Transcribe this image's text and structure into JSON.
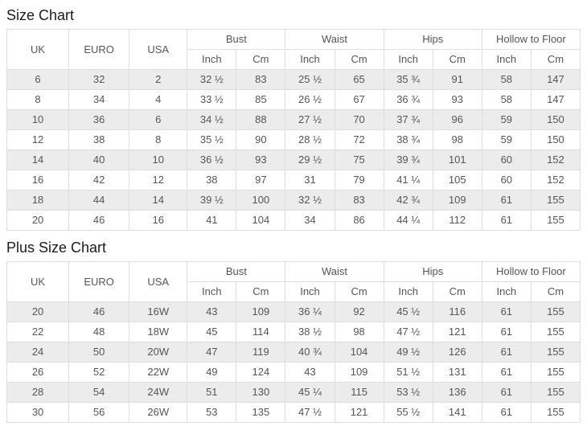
{
  "colors": {
    "background": "#ffffff",
    "row_shaded": "#ececec",
    "row_plain": "#ffffff",
    "border": "#dddddd",
    "cell_text": "#555555",
    "title_text": "#1b1b1b"
  },
  "tables": [
    {
      "title": "Size Chart",
      "columns": [
        "UK",
        "EURO",
        "USA"
      ],
      "measurement_groups": [
        "Bust",
        "Waist",
        "Hips",
        "Hollow to Floor"
      ],
      "unit_headers": [
        "Inch",
        "Cm"
      ],
      "rows": [
        [
          "6",
          "32",
          "2",
          "32 ½",
          "83",
          "25 ½",
          "65",
          "35 ¾",
          "91",
          "58",
          "147"
        ],
        [
          "8",
          "34",
          "4",
          "33 ½",
          "85",
          "26 ½",
          "67",
          "36 ¾",
          "93",
          "58",
          "147"
        ],
        [
          "10",
          "36",
          "6",
          "34 ½",
          "88",
          "27 ½",
          "70",
          "37 ¾",
          "96",
          "59",
          "150"
        ],
        [
          "12",
          "38",
          "8",
          "35 ½",
          "90",
          "28 ½",
          "72",
          "38 ¾",
          "98",
          "59",
          "150"
        ],
        [
          "14",
          "40",
          "10",
          "36 ½",
          "93",
          "29 ½",
          "75",
          "39 ¾",
          "101",
          "60",
          "152"
        ],
        [
          "16",
          "42",
          "12",
          "38",
          "97",
          "31",
          "79",
          "41 ¼",
          "105",
          "60",
          "152"
        ],
        [
          "18",
          "44",
          "14",
          "39 ½",
          "100",
          "32 ½",
          "83",
          "42 ¾",
          "109",
          "61",
          "155"
        ],
        [
          "20",
          "46",
          "16",
          "41",
          "104",
          "34",
          "86",
          "44 ¼",
          "112",
          "61",
          "155"
        ]
      ]
    },
    {
      "title": "Plus Size Chart",
      "columns": [
        "UK",
        "EURO",
        "USA"
      ],
      "measurement_groups": [
        "Bust",
        "Waist",
        "Hips",
        "Hollow to Floor"
      ],
      "unit_headers": [
        "Inch",
        "Cm"
      ],
      "rows": [
        [
          "20",
          "46",
          "16W",
          "43",
          "109",
          "36 ¼",
          "92",
          "45 ½",
          "116",
          "61",
          "155"
        ],
        [
          "22",
          "48",
          "18W",
          "45",
          "114",
          "38 ½",
          "98",
          "47 ½",
          "121",
          "61",
          "155"
        ],
        [
          "24",
          "50",
          "20W",
          "47",
          "119",
          "40 ¾",
          "104",
          "49 ½",
          "126",
          "61",
          "155"
        ],
        [
          "26",
          "52",
          "22W",
          "49",
          "124",
          "43",
          "109",
          "51 ½",
          "131",
          "61",
          "155"
        ],
        [
          "28",
          "54",
          "24W",
          "51",
          "130",
          "45 ¼",
          "115",
          "53 ½",
          "136",
          "61",
          "155"
        ],
        [
          "30",
          "56",
          "26W",
          "53",
          "135",
          "47 ½",
          "121",
          "55 ½",
          "141",
          "61",
          "155"
        ]
      ]
    }
  ]
}
